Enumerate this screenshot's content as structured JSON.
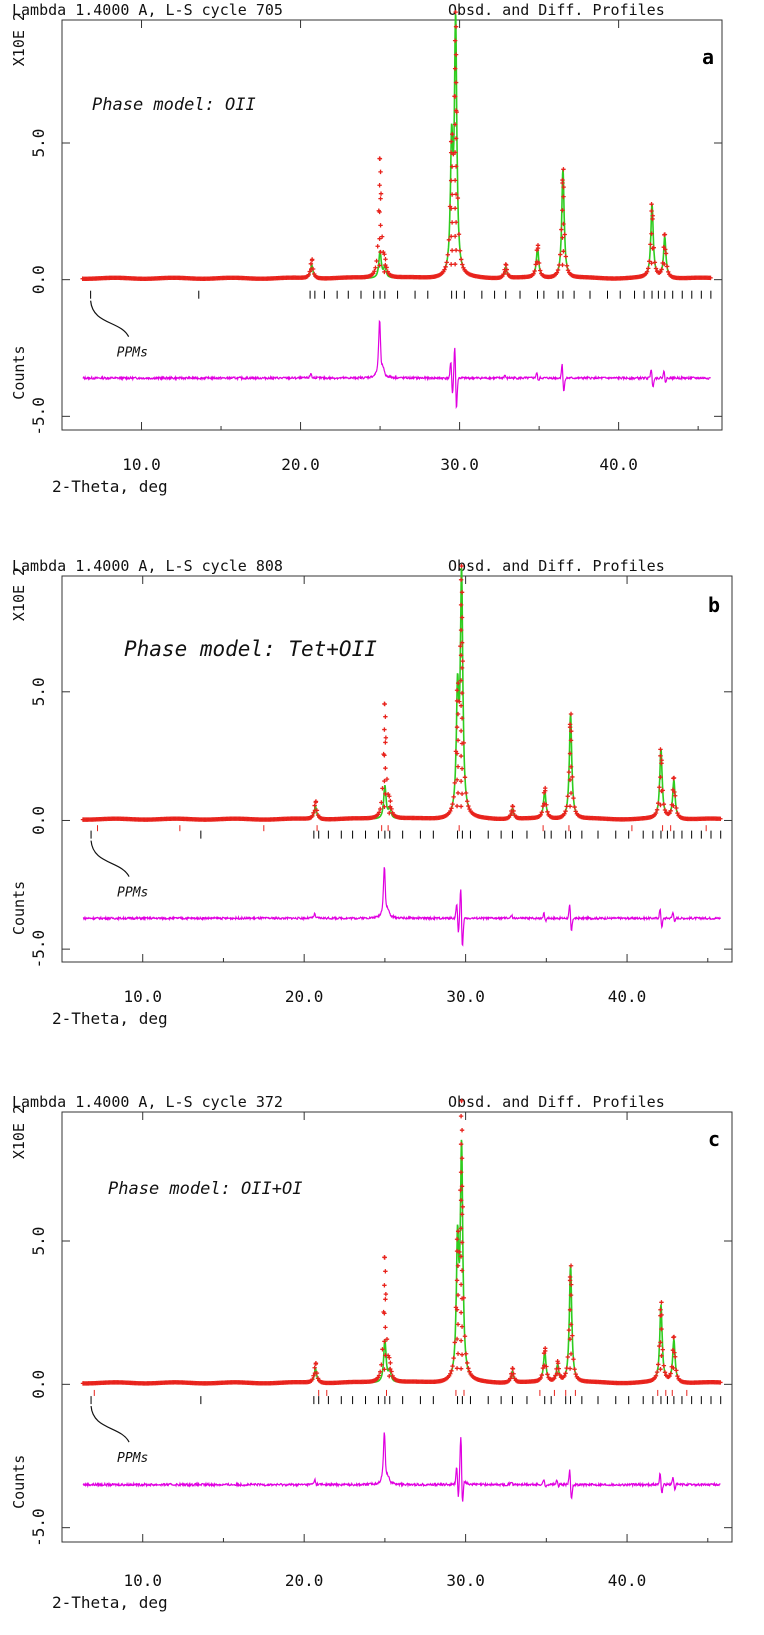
{
  "chart_data": [
    {
      "type": "scatter",
      "panel_letter": "a",
      "header_left": "Lambda 1.4000 A, L-S cycle  705",
      "header_right": "Obsd. and Diff. Profiles",
      "ylabel_top": "X10E  2",
      "ylabel_bottom": "Counts",
      "xlabel": "2-Theta, deg",
      "xlim": [
        5.0,
        46.5
      ],
      "ylim": [
        -5.5,
        9.5
      ],
      "x_ticks": [
        "10.0",
        "20.0",
        "30.0",
        "40.0"
      ],
      "y_ticks": [
        "5.0",
        "0.0",
        "-5.0"
      ],
      "annotation": "Phase model: OII",
      "ppm_label": "PPMs",
      "diff_offset": -3.6,
      "peaks": [
        {
          "x": 20.7,
          "obs": 0.7,
          "calc": 0.5
        },
        {
          "x": 25.0,
          "obs": 4.4,
          "calc": 1.0
        },
        {
          "x": 25.3,
          "obs": 0.5,
          "calc": 0.4
        },
        {
          "x": 29.5,
          "obs": 4.6,
          "calc": 4.6
        },
        {
          "x": 29.75,
          "obs": 9.2,
          "calc": 9.2
        },
        {
          "x": 32.9,
          "obs": 0.5,
          "calc": 0.4
        },
        {
          "x": 34.9,
          "obs": 1.2,
          "calc": 1.1
        },
        {
          "x": 36.5,
          "obs": 4.0,
          "calc": 4.0
        },
        {
          "x": 42.1,
          "obs": 2.7,
          "calc": 2.7
        },
        {
          "x": 42.9,
          "obs": 1.6,
          "calc": 1.5
        }
      ],
      "ticks_row1": [
        6.8,
        13.6,
        20.6,
        20.9,
        21.5,
        22.3,
        23.0,
        23.8,
        24.6,
        25.0,
        25.3,
        26.1,
        27.2,
        28.0,
        29.5,
        29.8,
        30.3,
        31.4,
        32.2,
        32.9,
        33.8,
        34.9,
        35.3,
        36.2,
        36.5,
        37.2,
        38.2,
        39.3,
        40.1,
        41.0,
        41.6,
        42.1,
        42.5,
        42.9,
        43.4,
        44.0,
        44.6,
        45.2,
        45.8
      ],
      "ticks_row2": []
    },
    {
      "type": "scatter",
      "panel_letter": "b",
      "header_left": "Lambda 1.4000 A, L-S cycle  808",
      "header_right": "Obsd. and Diff. Profiles",
      "ylabel_top": "X10E  2",
      "ylabel_bottom": "Counts",
      "xlabel": "2-Theta, deg",
      "xlim": [
        5.0,
        46.5
      ],
      "ylim": [
        -5.5,
        9.5
      ],
      "x_ticks": [
        "10.0",
        "20.0",
        "30.0",
        "40.0"
      ],
      "y_ticks": [
        "5.0",
        "0.0",
        "-5.0"
      ],
      "annotation": "Phase model: Tet+OII",
      "ppm_label": "PPMs",
      "diff_offset": -3.8,
      "peaks": [
        {
          "x": 20.7,
          "obs": 0.7,
          "calc": 0.5
        },
        {
          "x": 25.0,
          "obs": 4.5,
          "calc": 1.3
        },
        {
          "x": 25.3,
          "obs": 0.5,
          "calc": 0.4
        },
        {
          "x": 29.5,
          "obs": 4.6,
          "calc": 4.6
        },
        {
          "x": 29.75,
          "obs": 9.3,
          "calc": 9.3
        },
        {
          "x": 32.9,
          "obs": 0.5,
          "calc": 0.4
        },
        {
          "x": 34.9,
          "obs": 1.2,
          "calc": 1.1
        },
        {
          "x": 36.5,
          "obs": 4.1,
          "calc": 4.1
        },
        {
          "x": 42.1,
          "obs": 2.7,
          "calc": 2.7
        },
        {
          "x": 42.9,
          "obs": 1.6,
          "calc": 1.5
        }
      ],
      "ticks_row1": [
        6.8,
        13.6,
        20.6,
        20.9,
        21.5,
        22.3,
        23.0,
        23.8,
        24.6,
        25.0,
        25.3,
        26.1,
        27.2,
        28.0,
        29.5,
        29.8,
        30.3,
        31.4,
        32.2,
        32.9,
        33.8,
        34.9,
        35.3,
        36.2,
        36.5,
        37.2,
        38.2,
        39.3,
        40.1,
        41.0,
        41.6,
        42.1,
        42.5,
        42.9,
        43.4,
        44.0,
        44.6,
        45.2,
        45.8
      ],
      "ticks_row2": [
        7.2,
        12.3,
        17.5,
        20.8,
        24.8,
        25.2,
        29.6,
        34.8,
        36.4,
        40.3,
        42.2,
        42.7,
        44.9
      ]
    },
    {
      "type": "scatter",
      "panel_letter": "c",
      "header_left": "Lambda 1.4000 A, L-S cycle  372",
      "header_right": "Obsd. and Diff. Profiles",
      "ylabel_top": "X10E  2",
      "ylabel_bottom": "Counts",
      "xlabel": "2-Theta, deg",
      "xlim": [
        5.0,
        46.5
      ],
      "ylim": [
        -5.5,
        9.5
      ],
      "x_ticks": [
        "10.0",
        "20.0",
        "30.0",
        "40.0"
      ],
      "y_ticks": [
        "5.0",
        "0.0",
        "-5.0"
      ],
      "annotation": "Phase model: OII+OI",
      "ppm_label": "PPMs",
      "diff_offset": -3.5,
      "peaks": [
        {
          "x": 20.7,
          "obs": 0.7,
          "calc": 0.5
        },
        {
          "x": 25.0,
          "obs": 4.4,
          "calc": 1.5
        },
        {
          "x": 25.3,
          "obs": 0.5,
          "calc": 0.4
        },
        {
          "x": 29.5,
          "obs": 4.6,
          "calc": 4.6
        },
        {
          "x": 29.75,
          "obs": 9.3,
          "calc": 8.0
        },
        {
          "x": 32.9,
          "obs": 0.5,
          "calc": 0.4
        },
        {
          "x": 34.9,
          "obs": 1.2,
          "calc": 1.1
        },
        {
          "x": 35.7,
          "obs": 0.7,
          "calc": 0.6
        },
        {
          "x": 36.5,
          "obs": 4.1,
          "calc": 4.1
        },
        {
          "x": 42.1,
          "obs": 2.8,
          "calc": 2.7
        },
        {
          "x": 42.9,
          "obs": 1.6,
          "calc": 1.5
        }
      ],
      "ticks_row1": [
        6.8,
        13.6,
        20.6,
        20.9,
        21.5,
        22.3,
        23.0,
        23.8,
        24.6,
        25.0,
        25.3,
        26.1,
        27.2,
        28.0,
        29.5,
        29.8,
        30.3,
        31.4,
        32.2,
        32.9,
        33.8,
        34.9,
        35.3,
        36.2,
        36.5,
        37.2,
        38.2,
        39.3,
        40.1,
        41.0,
        41.6,
        42.1,
        42.5,
        42.9,
        43.4,
        44.0,
        44.6,
        45.2,
        45.8
      ],
      "ticks_row2": [
        7.0,
        20.9,
        21.4,
        25.1,
        29.4,
        29.9,
        34.6,
        35.5,
        36.2,
        36.8,
        41.9,
        42.4,
        42.8,
        43.7
      ]
    }
  ],
  "colors": {
    "observed": "#e8231c",
    "calculated": "#2ecc1f",
    "difference": "#e000e0",
    "tick_primary": "#000000",
    "tick_secondary": "#e8231c"
  }
}
